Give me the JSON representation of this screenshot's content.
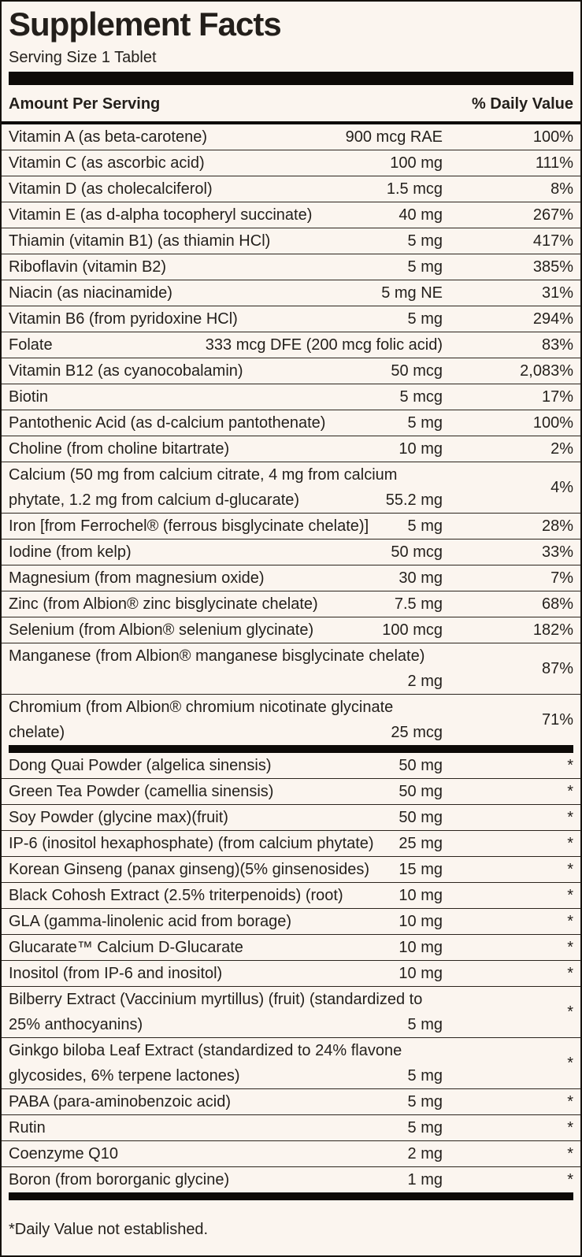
{
  "label": {
    "title": "Supplement Facts",
    "serving_size": "Serving Size 1 Tablet",
    "columns": {
      "amount": "Amount Per Serving",
      "daily_value": "% Daily Value"
    },
    "footnote": "*Daily Value not established.",
    "colors": {
      "background": "#FBF5EF",
      "text": "#231f1b",
      "rule": "#0d0a07"
    }
  },
  "sections": [
    {
      "name": "vitamins-and-minerals",
      "rows": [
        {
          "lines": [
            {
              "name": "Vitamin A (as beta-carotene)",
              "amount": "900 mcg RAE"
            }
          ],
          "dv": "100%"
        },
        {
          "lines": [
            {
              "name": "Vitamin C (as ascorbic acid)",
              "amount": "100 mg"
            }
          ],
          "dv": "111%"
        },
        {
          "lines": [
            {
              "name": "Vitamin D (as cholecalciferol)",
              "amount": "1.5 mcg"
            }
          ],
          "dv": "8%"
        },
        {
          "lines": [
            {
              "name": "Vitamin E (as d-alpha tocopheryl succinate)",
              "amount": "40 mg"
            }
          ],
          "dv": "267%"
        },
        {
          "lines": [
            {
              "name": "Thiamin (vitamin B1) (as thiamin HCl)",
              "amount": "5 mg"
            }
          ],
          "dv": "417%"
        },
        {
          "lines": [
            {
              "name": "Riboflavin (vitamin B2)",
              "amount": "5 mg"
            }
          ],
          "dv": "385%"
        },
        {
          "lines": [
            {
              "name": "Niacin (as niacinamide)",
              "amount": "5 mg NE"
            }
          ],
          "dv": "31%"
        },
        {
          "lines": [
            {
              "name": "Vitamin B6 (from pyridoxine HCl)",
              "amount": "5 mg"
            }
          ],
          "dv": "294%"
        },
        {
          "lines": [
            {
              "name": "Folate",
              "amount": "333 mcg DFE (200 mcg folic acid)"
            }
          ],
          "dv": "83%"
        },
        {
          "lines": [
            {
              "name": "Vitamin B12 (as cyanocobalamin)",
              "amount": "50 mcg"
            }
          ],
          "dv": "2,083%"
        },
        {
          "lines": [
            {
              "name": "Biotin",
              "amount": "5 mcg"
            }
          ],
          "dv": "17%"
        },
        {
          "lines": [
            {
              "name": "Pantothenic Acid (as d-calcium pantothenate)",
              "amount": "5 mg"
            }
          ],
          "dv": "100%"
        },
        {
          "lines": [
            {
              "name": "Choline (from choline bitartrate)",
              "amount": "10 mg"
            }
          ],
          "dv": "2%"
        },
        {
          "lines": [
            {
              "name": "Calcium (50 mg from calcium citrate, 4 mg from calcium",
              "amount": ""
            },
            {
              "name": "phytate, 1.2 mg from calcium d-glucarate)",
              "amount": "55.2 mg"
            }
          ],
          "dv": "4%"
        },
        {
          "lines": [
            {
              "name": "Iron [from Ferrochel® (ferrous bisglycinate chelate)]",
              "amount": "5 mg"
            }
          ],
          "dv": "28%"
        },
        {
          "lines": [
            {
              "name": "Iodine (from kelp)",
              "amount": "50 mcg"
            }
          ],
          "dv": "33%"
        },
        {
          "lines": [
            {
              "name": "Magnesium (from magnesium oxide)",
              "amount": "30 mg"
            }
          ],
          "dv": "7%"
        },
        {
          "lines": [
            {
              "name": "Zinc (from Albion® zinc bisglycinate chelate)",
              "amount": "7.5 mg"
            }
          ],
          "dv": "68%"
        },
        {
          "lines": [
            {
              "name": "Selenium (from Albion® selenium glycinate)",
              "amount": "100 mcg"
            }
          ],
          "dv": "182%"
        },
        {
          "lines": [
            {
              "name": "Manganese (from Albion® manganese bisglycinate chelate)",
              "amount": ""
            },
            {
              "name": "",
              "amount": "2 mg"
            }
          ],
          "dv": "87%"
        },
        {
          "lines": [
            {
              "name": "Chromium (from Albion® chromium nicotinate glycinate",
              "amount": ""
            },
            {
              "name": "chelate)",
              "amount": "25 mcg"
            }
          ],
          "dv": "71%"
        }
      ]
    },
    {
      "name": "botanicals-and-others",
      "rows": [
        {
          "lines": [
            {
              "name": "Dong Quai Powder (algelica sinensis)",
              "amount": "50 mg"
            }
          ],
          "dv": "*"
        },
        {
          "lines": [
            {
              "name": "Green Tea Powder (camellia sinensis)",
              "amount": "50 mg"
            }
          ],
          "dv": "*"
        },
        {
          "lines": [
            {
              "name": "Soy Powder (glycine max)(fruit)",
              "amount": "50 mg"
            }
          ],
          "dv": "*"
        },
        {
          "lines": [
            {
              "name": "IP-6 (inositol hexaphosphate) (from calcium phytate)",
              "amount": "25 mg"
            }
          ],
          "dv": "*"
        },
        {
          "lines": [
            {
              "name": "Korean Ginseng (panax ginseng)(5% ginsenosides)",
              "amount": "15 mg"
            }
          ],
          "dv": "*"
        },
        {
          "lines": [
            {
              "name": "Black Cohosh Extract (2.5% triterpenoids) (root)",
              "amount": "10 mg"
            }
          ],
          "dv": "*"
        },
        {
          "lines": [
            {
              "name": "GLA (gamma-linolenic acid from borage)",
              "amount": "10 mg"
            }
          ],
          "dv": "*"
        },
        {
          "lines": [
            {
              "name": "Glucarate™ Calcium D-Glucarate",
              "amount": "10 mg"
            }
          ],
          "dv": "*"
        },
        {
          "lines": [
            {
              "name": "Inositol (from IP-6 and inositol)",
              "amount": "10 mg"
            }
          ],
          "dv": "*"
        },
        {
          "lines": [
            {
              "name": "Bilberry Extract (Vaccinium myrtillus) (fruit) (standardized to",
              "amount": ""
            },
            {
              "name": "25% anthocyanins)",
              "amount": "5 mg"
            }
          ],
          "dv": "*"
        },
        {
          "lines": [
            {
              "name": "Ginkgo biloba Leaf Extract (standardized to 24% flavone",
              "amount": ""
            },
            {
              "name": "glycosides, 6% terpene lactones)",
              "amount": "5 mg"
            }
          ],
          "dv": "*"
        },
        {
          "lines": [
            {
              "name": "PABA (para-aminobenzoic acid)",
              "amount": "5 mg"
            }
          ],
          "dv": "*"
        },
        {
          "lines": [
            {
              "name": "Rutin",
              "amount": "5 mg"
            }
          ],
          "dv": "*"
        },
        {
          "lines": [
            {
              "name": "Coenzyme Q10",
              "amount": "2 mg"
            }
          ],
          "dv": "*"
        },
        {
          "lines": [
            {
              "name": "Boron (from bororganic glycine)",
              "amount": "1 mg"
            }
          ],
          "dv": "*"
        }
      ]
    }
  ]
}
